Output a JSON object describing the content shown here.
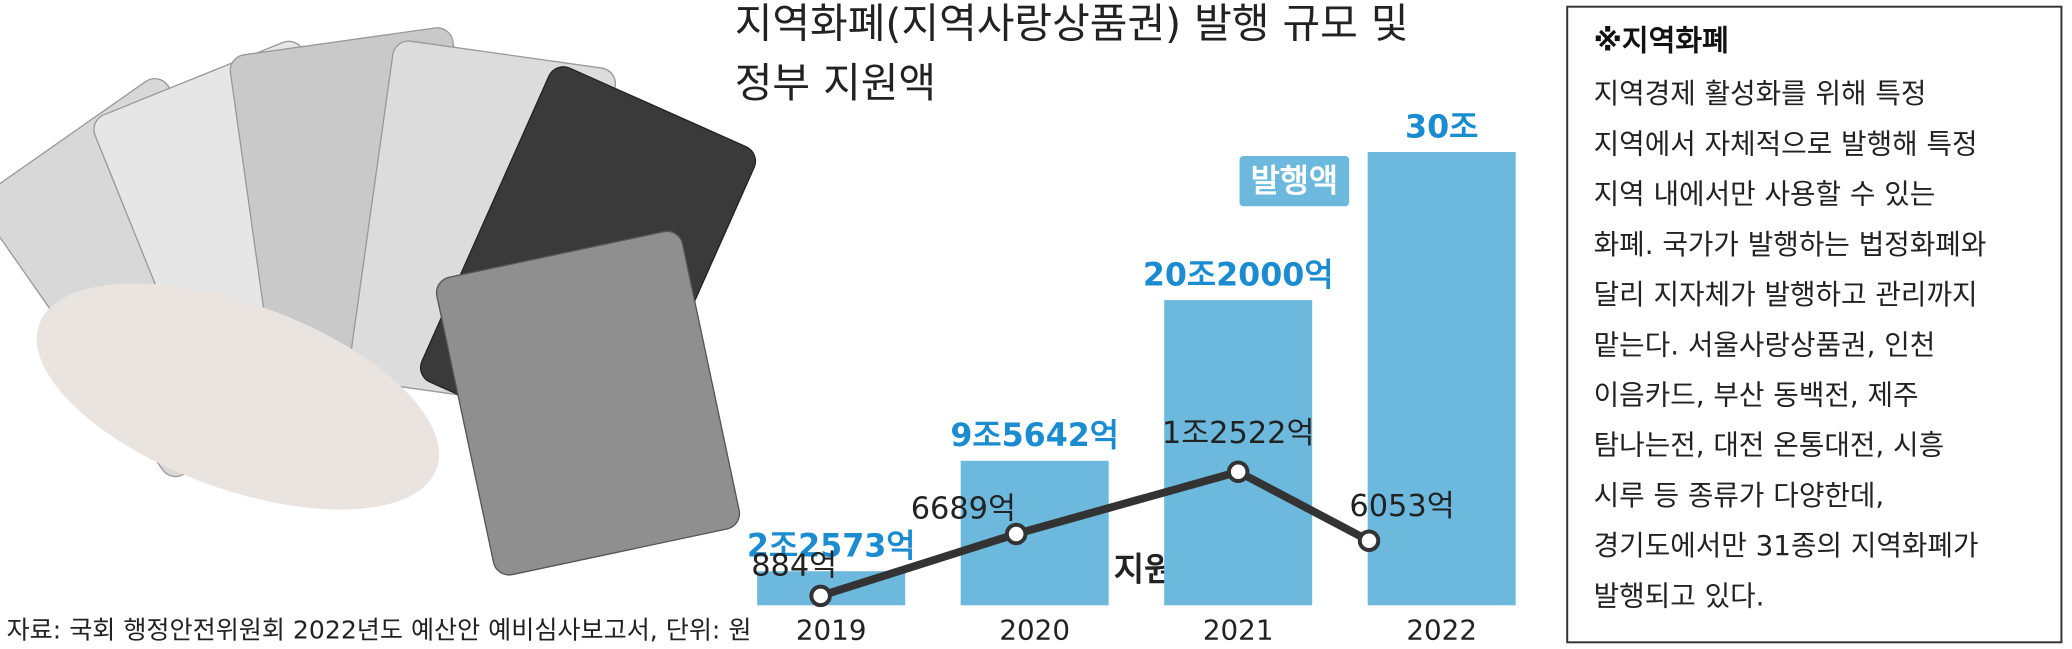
{
  "chart_data": {
    "type": "bar",
    "title": [
      "지역화폐(지역사랑상품권) 발행 규모 및",
      "정부 지원액"
    ],
    "categories": [
      "2019",
      "2020",
      "2021",
      "2022"
    ],
    "series": [
      {
        "name": "발행액",
        "color": "#6cb9dd",
        "values": [
          22573,
          95642,
          202000,
          300000
        ],
        "value_labels": [
          "2조2573억",
          "9조5642억",
          "20조2000억",
          "30조"
        ]
      },
      {
        "name": "정부 지원액",
        "type": "line",
        "axis": "y2",
        "color": "#333333",
        "values": [
          884,
          6689,
          12522,
          6053
        ],
        "value_labels": [
          "884억",
          "6689억",
          "1조2522억",
          "6053억"
        ]
      }
    ],
    "ylim": [
      0,
      300000
    ],
    "y2lim": [
      0,
      42500
    ],
    "source": "자료: 국회 행정안전위원회 2022년도 예산안 예비심사보고서, 단위: 원",
    "note": {
      "title": "※지역화폐",
      "lines": [
        "지역경제 활성화를 위해 특정",
        "지역에서 자체적으로 발행해 특정",
        "지역 내에서만 사용할 수 있는",
        "화폐. 국가가 발행하는 법정화폐와",
        "달리 지자체가 발행하고 관리까지",
        "맡는다. 서울사랑상품권, 인천",
        "이음카드, 부산 동백전, 제주",
        "탐나는전, 대전 온통대전, 시흥",
        "시루 등 종류가 다양한데,",
        "경기도에서만 31종의 지역화폐가",
        "발행되고 있다."
      ]
    }
  }
}
